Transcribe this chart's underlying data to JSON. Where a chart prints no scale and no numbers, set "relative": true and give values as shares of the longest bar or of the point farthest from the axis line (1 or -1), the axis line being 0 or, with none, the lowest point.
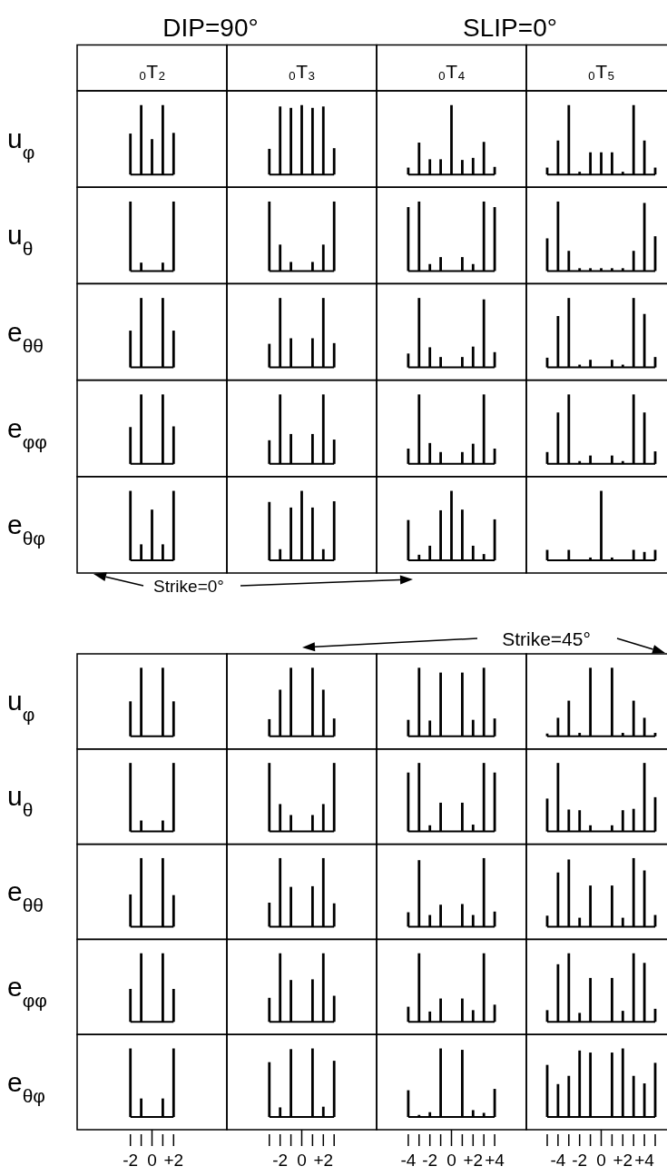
{
  "chart_data": [
    {
      "type": "bar",
      "relative": true,
      "title": "₀T₂",
      "ylabel": "u$_{φ}$",
      "annotations": [
        "DIP=90°",
        "SLIP=0°"
      ],
      "categories": [
        null,
        null,
        null,
        null,
        null
      ],
      "values": [
        0.59,
        1,
        0.51,
        1,
        0.6
      ],
      "color": "#000000"
    },
    {
      "type": "bar",
      "relative": true,
      "title": "₀T₃",
      "categories": [
        null,
        null,
        null,
        null,
        null,
        null,
        null
      ],
      "values": [
        0.37,
        0.98,
        0.96,
        1,
        0.96,
        0.98,
        0.38
      ],
      "color": "#000000"
    },
    {
      "type": "bar",
      "relative": true,
      "title": "₀T₄",
      "categories": [
        null,
        null,
        null,
        null,
        null,
        null,
        null,
        null,
        null
      ],
      "values": [
        0.1,
        0.46,
        0.22,
        0.22,
        1,
        0.21,
        0.24,
        0.47,
        0.11
      ],
      "color": "#000000"
    },
    {
      "type": "bar",
      "relative": true,
      "title": "₀T₅",
      "categories": [
        null,
        null,
        null,
        null,
        null,
        null,
        null,
        null,
        null,
        null,
        null
      ],
      "values": [
        0.1,
        0.49,
        1,
        0.04,
        0.32,
        0.32,
        0.32,
        0.04,
        1,
        0.49,
        0.1
      ],
      "color": "#000000"
    },
    {
      "type": "bar",
      "relative": true,
      "ylabel": "u$_{θ}$",
      "categories": [
        null,
        null,
        null,
        null,
        null
      ],
      "values": [
        1,
        0.12,
        null,
        0.12,
        1
      ],
      "color": "#000000"
    },
    {
      "type": "bar",
      "relative": true,
      "categories": [
        null,
        null,
        null,
        null,
        null,
        null,
        null
      ],
      "values": [
        1,
        0.38,
        0.13,
        null,
        0.13,
        0.38,
        1
      ],
      "color": "#000000"
    },
    {
      "type": "bar",
      "relative": true,
      "categories": [
        null,
        null,
        null,
        null,
        null,
        null,
        null,
        null,
        null
      ],
      "values": [
        0.92,
        1,
        0.1,
        0.2,
        null,
        0.2,
        0.1,
        1,
        0.92
      ],
      "color": "#000000"
    },
    {
      "type": "bar",
      "relative": true,
      "categories": [
        null,
        null,
        null,
        null,
        null,
        null,
        null,
        null,
        null,
        null,
        null
      ],
      "values": [
        0.47,
        1,
        0.29,
        0.04,
        0.04,
        0.04,
        0.04,
        0.04,
        0.29,
        0.98,
        0.5
      ],
      "color": "#000000"
    },
    {
      "type": "bar",
      "relative": true,
      "ylabel": "e$_{θθ}$",
      "categories": [
        null,
        null,
        null,
        null,
        null
      ],
      "values": [
        0.53,
        1,
        null,
        1,
        0.53
      ],
      "color": "#000000"
    },
    {
      "type": "bar",
      "relative": true,
      "categories": [
        null,
        null,
        null,
        null,
        null,
        null,
        null
      ],
      "values": [
        0.34,
        1,
        0.42,
        null,
        0.42,
        1,
        0.35
      ],
      "color": "#000000"
    },
    {
      "type": "bar",
      "relative": true,
      "categories": [
        null,
        null,
        null,
        null,
        null,
        null,
        null,
        null,
        null
      ],
      "values": [
        0.2,
        1,
        0.29,
        0.15,
        null,
        0.15,
        0.3,
        0.98,
        0.22
      ],
      "color": "#000000"
    },
    {
      "type": "bar",
      "relative": true,
      "categories": [
        null,
        null,
        null,
        null,
        null,
        null,
        null,
        null,
        null,
        null,
        null
      ],
      "values": [
        0.14,
        0.74,
        1,
        0.04,
        0.11,
        null,
        0.11,
        0.04,
        1,
        0.77,
        0.15
      ],
      "color": "#000000"
    },
    {
      "type": "bar",
      "relative": true,
      "ylabel": "e$_{φφ}$",
      "categories": [
        null,
        null,
        null,
        null,
        null
      ],
      "values": [
        0.53,
        1,
        null,
        1,
        0.54
      ],
      "color": "#000000"
    },
    {
      "type": "bar",
      "relative": true,
      "categories": [
        null,
        null,
        null,
        null,
        null,
        null,
        null
      ],
      "values": [
        0.34,
        1,
        0.43,
        null,
        0.43,
        1,
        0.35
      ],
      "color": "#000000"
    },
    {
      "type": "bar",
      "relative": true,
      "categories": [
        null,
        null,
        null,
        null,
        null,
        null,
        null,
        null,
        null
      ],
      "values": [
        0.22,
        1,
        0.3,
        0.17,
        null,
        0.17,
        0.29,
        1,
        0.22
      ],
      "color": "#000000"
    },
    {
      "type": "bar",
      "relative": true,
      "categories": [
        null,
        null,
        null,
        null,
        null,
        null,
        null,
        null,
        null,
        null,
        null
      ],
      "values": [
        0.17,
        0.74,
        1,
        0.04,
        0.12,
        null,
        0.12,
        0.04,
        1,
        0.74,
        0.18
      ],
      "color": "#000000"
    },
    {
      "type": "bar",
      "relative": true,
      "ylabel": "e$_{θφ}$",
      "annotations": [
        "Strike=0°"
      ],
      "categories": [
        null,
        null,
        null,
        null,
        null
      ],
      "values": [
        1,
        0.23,
        0.73,
        0.23,
        1
      ],
      "color": "#000000"
    },
    {
      "type": "bar",
      "relative": true,
      "categories": [
        null,
        null,
        null,
        null,
        null,
        null,
        null
      ],
      "values": [
        0.84,
        0.16,
        0.76,
        1,
        0.76,
        0.16,
        0.85
      ],
      "color": "#000000"
    },
    {
      "type": "bar",
      "relative": true,
      "categories": [
        null,
        null,
        null,
        null,
        null,
        null,
        null,
        null,
        null
      ],
      "values": [
        0.58,
        0.08,
        0.21,
        0.72,
        1,
        0.73,
        0.21,
        0.09,
        0.59
      ],
      "color": "#000000"
    },
    {
      "type": "bar",
      "relative": true,
      "categories": [
        null,
        null,
        null,
        null,
        null,
        null,
        null,
        null,
        null,
        null,
        null
      ],
      "values": [
        0.15,
        null,
        0.15,
        null,
        0.04,
        1,
        0.04,
        null,
        0.15,
        0.12,
        0.15
      ],
      "color": "#000000"
    },
    {
      "type": "bar",
      "relative": true,
      "ylabel": "u$_{φ}$",
      "categories": [
        null,
        null,
        null,
        null,
        null
      ],
      "values": [
        0.51,
        1,
        null,
        1,
        0.51
      ],
      "color": "#000000"
    },
    {
      "type": "bar",
      "relative": true,
      "categories": [
        null,
        null,
        null,
        null,
        null,
        null,
        null
      ],
      "values": [
        0.25,
        0.68,
        1,
        null,
        1,
        0.68,
        0.26
      ],
      "color": "#000000"
    },
    {
      "type": "bar",
      "relative": true,
      "categories": [
        null,
        null,
        null,
        null,
        null,
        null,
        null,
        null,
        null
      ],
      "values": [
        0.24,
        1,
        0.23,
        0.93,
        null,
        0.93,
        0.24,
        1,
        0.26
      ],
      "color": "#000000"
    },
    {
      "type": "bar",
      "relative": true,
      "annotations": [
        "Strike=45°"
      ],
      "categories": [
        null,
        null,
        null,
        null,
        null,
        null,
        null,
        null,
        null,
        null,
        null
      ],
      "values": [
        0.04,
        0.27,
        0.52,
        0.05,
        1,
        null,
        1,
        0.05,
        0.52,
        0.27,
        0.05
      ],
      "color": "#000000"
    },
    {
      "type": "bar",
      "relative": true,
      "ylabel": "u$_{θ}$",
      "categories": [
        null,
        null,
        null,
        null,
        null
      ],
      "values": [
        1,
        0.16,
        null,
        0.16,
        1
      ],
      "color": "#000000"
    },
    {
      "type": "bar",
      "relative": true,
      "categories": [
        null,
        null,
        null,
        null,
        null,
        null,
        null
      ],
      "values": [
        1,
        0.4,
        0.24,
        null,
        0.24,
        0.4,
        1
      ],
      "color": "#000000"
    },
    {
      "type": "bar",
      "relative": true,
      "categories": [
        null,
        null,
        null,
        null,
        null,
        null,
        null,
        null,
        null
      ],
      "values": [
        0.86,
        1,
        0.09,
        0.42,
        null,
        0.42,
        0.1,
        1,
        0.86
      ],
      "color": "#000000"
    },
    {
      "type": "bar",
      "relative": true,
      "categories": [
        null,
        null,
        null,
        null,
        null,
        null,
        null,
        null,
        null,
        null,
        null
      ],
      "values": [
        0.48,
        1,
        0.32,
        0.31,
        0.09,
        null,
        0.09,
        0.31,
        0.33,
        1,
        0.5
      ],
      "color": "#000000"
    },
    {
      "type": "bar",
      "relative": true,
      "ylabel": "e$_{θθ}$",
      "categories": [
        null,
        null,
        null,
        null,
        null
      ],
      "values": [
        0.47,
        1,
        null,
        1,
        0.46
      ],
      "color": "#000000"
    },
    {
      "type": "bar",
      "relative": true,
      "categories": [
        null,
        null,
        null,
        null,
        null,
        null,
        null
      ],
      "values": [
        0.35,
        1,
        0.58,
        null,
        0.59,
        1,
        0.34
      ],
      "color": "#000000"
    },
    {
      "type": "bar",
      "relative": true,
      "categories": [
        null,
        null,
        null,
        null,
        null,
        null,
        null,
        null,
        null
      ],
      "values": [
        0.21,
        0.97,
        0.17,
        0.32,
        null,
        0.33,
        0.17,
        1,
        0.22
      ],
      "color": "#000000"
    },
    {
      "type": "bar",
      "relative": true,
      "categories": [
        null,
        null,
        null,
        null,
        null,
        null,
        null,
        null,
        null,
        null,
        null
      ],
      "values": [
        0.16,
        0.79,
        0.98,
        0.13,
        0.6,
        null,
        0.6,
        0.13,
        1,
        0.82,
        0.17
      ],
      "color": "#000000"
    },
    {
      "type": "bar",
      "relative": true,
      "ylabel": "e$_{φφ}$",
      "categories": [
        null,
        null,
        null,
        null,
        null
      ],
      "values": [
        0.48,
        1,
        null,
        1,
        0.48
      ],
      "color": "#000000"
    },
    {
      "type": "bar",
      "relative": true,
      "categories": [
        null,
        null,
        null,
        null,
        null,
        null,
        null
      ],
      "values": [
        0.35,
        1,
        0.61,
        null,
        0.62,
        1,
        0.38
      ],
      "color": "#000000"
    },
    {
      "type": "bar",
      "relative": true,
      "categories": [
        null,
        null,
        null,
        null,
        null,
        null,
        null,
        null,
        null
      ],
      "values": [
        0.22,
        1,
        0.15,
        0.34,
        null,
        0.34,
        0.17,
        1,
        0.25
      ],
      "color": "#000000"
    },
    {
      "type": "bar",
      "relative": true,
      "categories": [
        null,
        null,
        null,
        null,
        null,
        null,
        null,
        null,
        null,
        null,
        null
      ],
      "values": [
        0.17,
        0.84,
        1,
        0.13,
        0.64,
        null,
        0.64,
        0.16,
        1,
        0.86,
        0.19
      ],
      "color": "#000000"
    },
    {
      "type": "bar",
      "relative": true,
      "ylabel": "e$_{θφ}$",
      "categories": [
        "-2",
        null,
        "0",
        null,
        "+2"
      ],
      "values": [
        1,
        0.27,
        null,
        0.27,
        1
      ],
      "color": "#000000"
    },
    {
      "type": "bar",
      "relative": true,
      "categories": [
        null,
        "-2",
        null,
        "0",
        null,
        "+2",
        null
      ],
      "values": [
        0.8,
        0.14,
        0.99,
        null,
        1,
        0.15,
        0.82
      ],
      "color": "#000000"
    },
    {
      "type": "bar",
      "relative": true,
      "categories": [
        "-4",
        null,
        "-2",
        null,
        "0",
        null,
        "+2",
        null,
        "+4"
      ],
      "values": [
        0.39,
        0.03,
        0.07,
        1,
        null,
        0.98,
        0.1,
        0.06,
        0.41
      ],
      "color": "#000000"
    },
    {
      "type": "bar",
      "relative": true,
      "categories": [
        null,
        "-4",
        null,
        "-2",
        null,
        "0",
        null,
        "+2",
        null,
        "+4",
        null
      ],
      "values": [
        0.76,
        0.48,
        0.6,
        0.97,
        0.94,
        null,
        0.94,
        1,
        0.6,
        0.49,
        0.79
      ],
      "color": "#000000"
    }
  ]
}
